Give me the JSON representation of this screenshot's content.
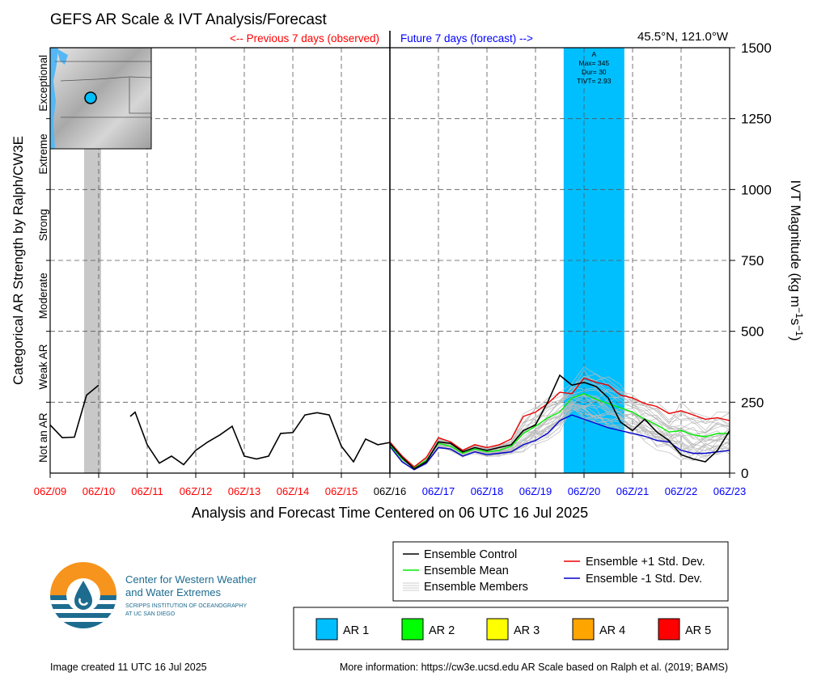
{
  "header": {
    "title": "GEFS AR Scale & IVT Analysis/Forecast",
    "previous_label": "<-- Previous 7 days (observed)",
    "future_label": "Future 7 days (forecast) -->",
    "location": "45.5°N, 121.0°W"
  },
  "chart_data": {
    "type": "line",
    "title": "GEFS AR Scale & IVT Analysis/Forecast",
    "xlabel": "Analysis and Forecast Time Centered on 06 UTC 16 Jul 2025",
    "ylabel": "IVT Magnitude (kg m⁻¹s⁻¹)",
    "ylabel_left": "Categorical AR Strength by Ralph/CW3E",
    "xlim_days": [
      9,
      23
    ],
    "ylim": [
      0,
      1500
    ],
    "y_ticks": [
      0,
      250,
      500,
      750,
      1000,
      1250,
      1500
    ],
    "x_ticks": [
      {
        "day": 9,
        "label": "06Z/09",
        "color": "#ff0000"
      },
      {
        "day": 10,
        "label": "06Z/10",
        "color": "#ff0000"
      },
      {
        "day": 11,
        "label": "06Z/11",
        "color": "#ff0000"
      },
      {
        "day": 12,
        "label": "06Z/12",
        "color": "#ff0000"
      },
      {
        "day": 13,
        "label": "06Z/13",
        "color": "#ff0000"
      },
      {
        "day": 14,
        "label": "06Z/14",
        "color": "#ff0000"
      },
      {
        "day": 15,
        "label": "06Z/15",
        "color": "#ff0000"
      },
      {
        "day": 16,
        "label": "06Z/16",
        "color": "#000000"
      },
      {
        "day": 17,
        "label": "06Z/17",
        "color": "#0000ff"
      },
      {
        "day": 18,
        "label": "06Z/18",
        "color": "#0000ff"
      },
      {
        "day": 19,
        "label": "06Z/19",
        "color": "#0000ff"
      },
      {
        "day": 20,
        "label": "06Z/20",
        "color": "#0000ff"
      },
      {
        "day": 21,
        "label": "06Z/21",
        "color": "#0000ff"
      },
      {
        "day": 22,
        "label": "06Z/22",
        "color": "#0000ff"
      },
      {
        "day": 23,
        "label": "06Z/23",
        "color": "#0000ff"
      }
    ],
    "categories": [
      {
        "label": "Not an AR",
        "y": 125
      },
      {
        "label": "Weak AR",
        "y": 375
      },
      {
        "label": "Moderate",
        "y": 625
      },
      {
        "label": "Strong",
        "y": 875
      },
      {
        "label": "Extreme",
        "y": 1125
      },
      {
        "label": "Exceptional",
        "y": 1375
      }
    ],
    "grid": true,
    "now_day": 16,
    "observed_ar_band": {
      "from": 9.7,
      "to": 10.05,
      "color": "#c8c8c8"
    },
    "ar_event": {
      "from": 19.58,
      "to": 20.83,
      "color": "#00bfff",
      "labels": [
        "A",
        "Max= 345",
        "Dur= 30",
        "TIVT= 2.93"
      ]
    },
    "observed": {
      "name": "Ensemble Control",
      "segments": [
        {
          "x": [
            9.0,
            9.25,
            9.5,
            9.75,
            10.0
          ],
          "y": [
            170,
            125,
            127,
            275,
            310
          ]
        },
        {
          "x": [
            10.65,
            10.75,
            11.0,
            11.25,
            11.5,
            11.75,
            12.0,
            12.25,
            12.5,
            12.75,
            13.0,
            13.25,
            13.5,
            13.75,
            14.0,
            14.25,
            14.5,
            14.75,
            15.0,
            15.25,
            15.5,
            15.75,
            16.0
          ],
          "y": [
            200,
            215,
            100,
            35,
            60,
            30,
            80,
            110,
            135,
            165,
            60,
            50,
            60,
            140,
            143,
            205,
            213,
            205,
            95,
            40,
            120,
            100,
            108
          ]
        }
      ]
    },
    "series": [
      {
        "name": "Ensemble Control",
        "color": "#000000",
        "x": [
          16.0,
          16.25,
          16.5,
          16.75,
          17.0,
          17.25,
          17.5,
          17.75,
          18.0,
          18.25,
          18.5,
          18.75,
          19.0,
          19.25,
          19.5,
          19.75,
          20.0,
          20.25,
          20.5,
          20.75,
          21.0,
          21.25,
          21.5,
          21.75,
          22.0,
          22.25,
          22.5,
          22.75,
          23.0
        ],
        "y": [
          105,
          55,
          15,
          40,
          110,
          105,
          75,
          90,
          80,
          90,
          100,
          150,
          170,
          250,
          345,
          310,
          320,
          305,
          265,
          180,
          150,
          190,
          145,
          115,
          65,
          50,
          40,
          80,
          150
        ]
      },
      {
        "name": "Ensemble Mean",
        "color": "#00ee00",
        "x": [
          16.0,
          16.25,
          16.5,
          16.75,
          17.0,
          17.25,
          17.5,
          17.75,
          18.0,
          18.25,
          18.5,
          18.75,
          19.0,
          19.25,
          19.5,
          19.75,
          20.0,
          20.25,
          20.5,
          20.75,
          21.0,
          21.25,
          21.5,
          21.75,
          22.0,
          22.25,
          22.5,
          22.75,
          23.0
        ],
        "y": [
          100,
          50,
          18,
          45,
          105,
          95,
          70,
          85,
          75,
          80,
          95,
          140,
          165,
          195,
          215,
          265,
          280,
          260,
          245,
          230,
          215,
          190,
          170,
          145,
          150,
          135,
          128,
          140,
          140
        ]
      },
      {
        "name": "Ensemble +1 Std. Dev.",
        "color": "#ee0000",
        "x": [
          16.0,
          16.25,
          16.5,
          16.75,
          17.0,
          17.25,
          17.5,
          17.75,
          18.0,
          18.25,
          18.5,
          18.75,
          19.0,
          19.25,
          19.5,
          19.75,
          20.0,
          20.25,
          20.5,
          20.75,
          21.0,
          21.25,
          21.5,
          21.75,
          22.0,
          22.25,
          22.5,
          22.75,
          23.0
        ],
        "y": [
          110,
          60,
          22,
          55,
          125,
          110,
          80,
          100,
          90,
          100,
          120,
          200,
          215,
          245,
          285,
          280,
          335,
          320,
          310,
          275,
          265,
          245,
          235,
          210,
          220,
          205,
          190,
          195,
          185
        ]
      },
      {
        "name": "Ensemble -1 Std. Dev.",
        "color": "#0000cc",
        "x": [
          16.0,
          16.25,
          16.5,
          16.75,
          17.0,
          17.25,
          17.5,
          17.75,
          18.0,
          18.25,
          18.5,
          18.75,
          19.0,
          19.25,
          19.5,
          19.75,
          20.0,
          20.25,
          20.5,
          20.75,
          21.0,
          21.25,
          21.5,
          21.75,
          22.0,
          22.25,
          22.5,
          22.75,
          23.0
        ],
        "y": [
          95,
          40,
          12,
          35,
          90,
          85,
          60,
          75,
          65,
          70,
          75,
          100,
          115,
          140,
          185,
          205,
          190,
          175,
          160,
          150,
          140,
          130,
          115,
          110,
          80,
          70,
          70,
          75,
          80
        ]
      }
    ],
    "members": {
      "name": "Ensemble Members",
      "color": "#bbbbbb",
      "count": 30
    }
  },
  "inset_map": {
    "marker_color": "#00bfff"
  },
  "legend": {
    "lines": [
      {
        "label": "Ensemble Control",
        "color": "#000000"
      },
      {
        "label": "Ensemble Mean",
        "color": "#00ee00"
      },
      {
        "label": "Ensemble Members",
        "color": "#bbbbbb"
      },
      {
        "label": "Ensemble +1 Std. Dev.",
        "color": "#ee0000"
      },
      {
        "label": "Ensemble -1 Std. Dev.",
        "color": "#0000cc"
      }
    ],
    "ar_scale": [
      {
        "label": "AR 1",
        "color": "#00bfff"
      },
      {
        "label": "AR 2",
        "color": "#00ff00"
      },
      {
        "label": "AR 3",
        "color": "#ffff00"
      },
      {
        "label": "AR 4",
        "color": "#ffa500"
      },
      {
        "label": "AR 5",
        "color": "#ff0000"
      }
    ]
  },
  "logo": {
    "line1": "Center for Western Weather",
    "line2": "and Water Extremes",
    "line3": "SCRIPPS INSTITUTION OF OCEANOGRAPHY",
    "line4": "AT UC SAN DIEGO",
    "colors": {
      "orange": "#f7941d",
      "teal": "#1d6b8f"
    }
  },
  "footer": {
    "created": "Image created 11 UTC 16 Jul 2025",
    "info": "More information: https://cw3e.ucsd.edu AR Scale based on Ralph et al. (2019; BAMS)"
  }
}
